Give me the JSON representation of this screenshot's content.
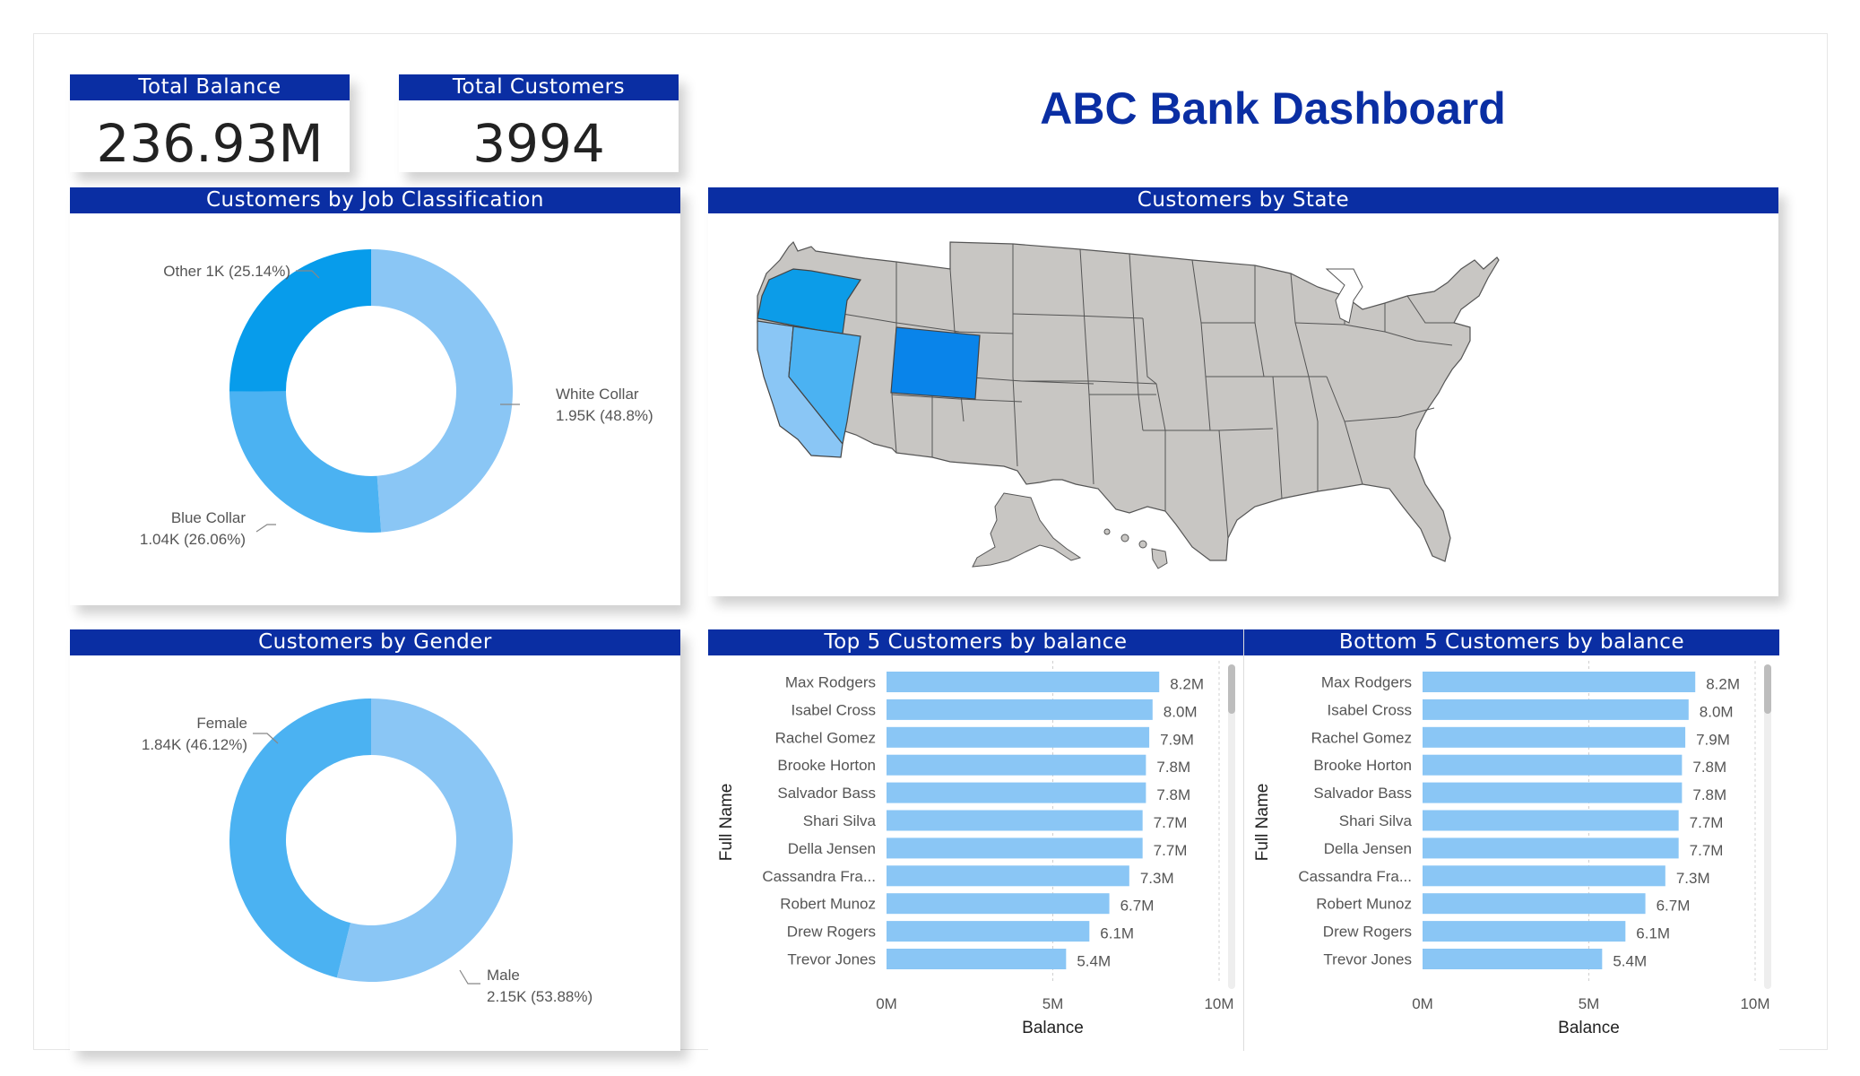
{
  "title": "ABC Bank Dashboard",
  "kpis": {
    "total_balance": {
      "label": "Total Balance",
      "value": "236.93M"
    },
    "total_customers": {
      "label": "Total Customers",
      "value": "3994"
    }
  },
  "colors": {
    "header": "#0a2ea3",
    "bar": "#8ac6f5",
    "map_base": "#c8c6c3"
  },
  "job_chart": {
    "header": "Customers by Job Classification",
    "labels": [
      {
        "line1": "Other 1K (25.14%)",
        "line2": ""
      },
      {
        "line1": "White Collar",
        "line2": "1.95K (48.8%)"
      },
      {
        "line1": "Blue Collar",
        "line2": "1.04K (26.06%)"
      }
    ]
  },
  "gender_chart": {
    "header": "Customers by Gender",
    "labels": [
      {
        "line1": "Female",
        "line2": "1.84K (46.12%)"
      },
      {
        "line1": "Male",
        "line2": "2.15K (53.88%)"
      }
    ]
  },
  "map": {
    "header": "Customers by State",
    "highlighted": [
      "Oregon",
      "Wyoming",
      "California",
      "Nevada"
    ]
  },
  "top5": {
    "header": "Top 5 Customers by balance",
    "ylabel": "Full Name",
    "xlabel": "Balance"
  },
  "bottom5": {
    "header": "Bottom 5 Customers by balance",
    "ylabel": "Full Name",
    "xlabel": "Balance"
  },
  "chart_data": [
    {
      "type": "pie",
      "title": "Customers by Job Classification",
      "categories": [
        "White Collar",
        "Blue Collar",
        "Other"
      ],
      "values": [
        1950,
        1040,
        1000
      ],
      "percents": [
        48.8,
        26.06,
        25.14
      ],
      "colors": [
        "#8ac6f5",
        "#4bb2f2",
        "#079ceb"
      ]
    },
    {
      "type": "pie",
      "title": "Customers by Gender",
      "categories": [
        "Male",
        "Female"
      ],
      "values": [
        2150,
        1840
      ],
      "percents": [
        53.88,
        46.12
      ],
      "colors": [
        "#8ac6f5",
        "#4bb2f2"
      ]
    },
    {
      "type": "bar",
      "orientation": "horizontal",
      "title": "Top 5 Customers by balance",
      "xlabel": "Balance",
      "ylabel": "Full Name",
      "categories": [
        "Max Rodgers",
        "Isabel Cross",
        "Rachel Gomez",
        "Brooke Horton",
        "Salvador Bass",
        "Shari Silva",
        "Della Jensen",
        "Cassandra Fra...",
        "Robert Munoz",
        "Drew Rogers",
        "Trevor Jones"
      ],
      "values": [
        8.2,
        8.0,
        7.9,
        7.8,
        7.8,
        7.7,
        7.7,
        7.3,
        6.7,
        6.1,
        5.4
      ],
      "data_labels": [
        "8.2M",
        "8.0M",
        "7.9M",
        "7.8M",
        "7.8M",
        "7.7M",
        "7.7M",
        "7.3M",
        "6.7M",
        "6.1M",
        "5.4M"
      ],
      "xlim": [
        0,
        10
      ],
      "xticks": [
        "0M",
        "5M",
        "10M"
      ]
    },
    {
      "type": "bar",
      "orientation": "horizontal",
      "title": "Bottom 5 Customers by balance",
      "xlabel": "Balance",
      "ylabel": "Full Name",
      "categories": [
        "Max Rodgers",
        "Isabel Cross",
        "Rachel Gomez",
        "Brooke Horton",
        "Salvador Bass",
        "Shari Silva",
        "Della Jensen",
        "Cassandra Fra...",
        "Robert Munoz",
        "Drew Rogers",
        "Trevor Jones"
      ],
      "values": [
        8.2,
        8.0,
        7.9,
        7.8,
        7.8,
        7.7,
        7.7,
        7.3,
        6.7,
        6.1,
        5.4
      ],
      "data_labels": [
        "8.2M",
        "8.0M",
        "7.9M",
        "7.8M",
        "7.8M",
        "7.7M",
        "7.7M",
        "7.3M",
        "6.7M",
        "6.1M",
        "5.4M"
      ],
      "xlim": [
        0,
        10
      ],
      "xticks": [
        "0M",
        "5M",
        "10M"
      ]
    }
  ]
}
